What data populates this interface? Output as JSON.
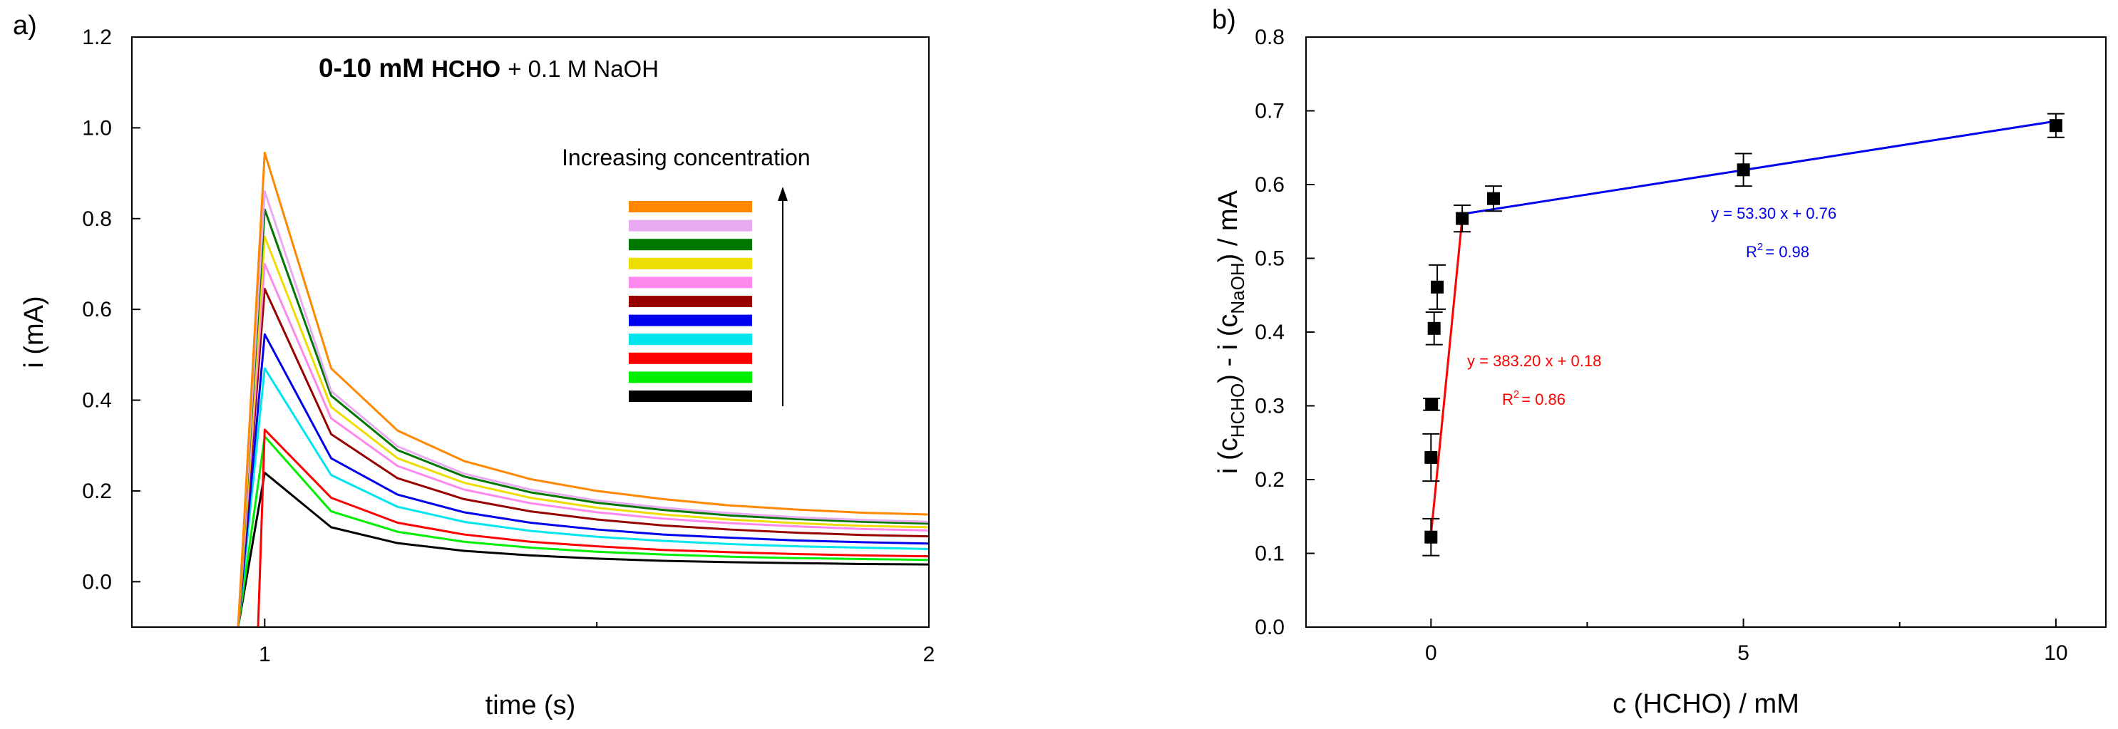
{
  "figure": {
    "panel_a_label": "a)",
    "panel_b_label": "b)"
  },
  "chart_data": [
    {
      "type": "line",
      "panel": "a)",
      "title_bold": "0-10 mM",
      "title_bold_compound": "HCHO",
      "title_rest": "+ 0.1 M NaOH",
      "xlabel": "time (s)",
      "ylabel": "i (mA)",
      "xlim": [
        0.8,
        2.0
      ],
      "ylim": [
        -0.1,
        1.2
      ],
      "xticks": [
        {
          "value": 1,
          "label": "1"
        },
        {
          "value": 2,
          "label": "2"
        }
      ],
      "yticks": [
        {
          "value": 0.0,
          "label": "0.0"
        },
        {
          "value": 0.2,
          "label": "0.2"
        },
        {
          "value": 0.4,
          "label": "0.4"
        },
        {
          "value": 0.6,
          "label": "0.6"
        },
        {
          "value": 0.8,
          "label": "0.8"
        },
        {
          "value": 1.0,
          "label": "1.0"
        },
        {
          "value": 1.2,
          "label": "1.2"
        }
      ],
      "legend_text": "Increasing concentration",
      "legend_placement": "right",
      "x": [
        1.0,
        1.1,
        1.2,
        1.3,
        1.4,
        1.5,
        1.6,
        1.7,
        1.8,
        1.9,
        2.0
      ],
      "series": [
        {
          "color": "#000000",
          "start_x": 0.96,
          "values": [
            0.24,
            0.12,
            0.085,
            0.068,
            0.058,
            0.051,
            0.046,
            0.043,
            0.041,
            0.039,
            0.038
          ]
        },
        {
          "color": "#00ee00",
          "start_x": 0.96,
          "values": [
            0.32,
            0.155,
            0.11,
            0.088,
            0.075,
            0.066,
            0.06,
            0.055,
            0.052,
            0.05,
            0.048
          ]
        },
        {
          "color": "#ff0000",
          "start_x": 0.99,
          "values": [
            0.335,
            0.185,
            0.13,
            0.104,
            0.088,
            0.078,
            0.07,
            0.065,
            0.061,
            0.058,
            0.056
          ]
        },
        {
          "color": "#00e5ee",
          "start_x": 0.96,
          "values": [
            0.47,
            0.235,
            0.165,
            0.132,
            0.112,
            0.099,
            0.09,
            0.083,
            0.078,
            0.075,
            0.072
          ]
        },
        {
          "color": "#0000ee",
          "start_x": 0.96,
          "values": [
            0.545,
            0.272,
            0.192,
            0.153,
            0.13,
            0.115,
            0.104,
            0.097,
            0.091,
            0.087,
            0.084
          ]
        },
        {
          "color": "#990000",
          "start_x": 0.96,
          "values": [
            0.645,
            0.325,
            0.228,
            0.182,
            0.155,
            0.137,
            0.124,
            0.115,
            0.108,
            0.103,
            0.1
          ]
        },
        {
          "color": "#ff88ee",
          "start_x": 0.96,
          "values": [
            0.7,
            0.36,
            0.255,
            0.203,
            0.173,
            0.153,
            0.139,
            0.129,
            0.122,
            0.116,
            0.113
          ]
        },
        {
          "color": "#eedd00",
          "start_x": 0.96,
          "values": [
            0.76,
            0.385,
            0.272,
            0.218,
            0.185,
            0.163,
            0.148,
            0.137,
            0.129,
            0.123,
            0.12
          ]
        },
        {
          "color": "#007700",
          "start_x": 0.96,
          "values": [
            0.82,
            0.41,
            0.29,
            0.232,
            0.197,
            0.174,
            0.158,
            0.146,
            0.138,
            0.132,
            0.128
          ]
        },
        {
          "color": "#e8aaf0",
          "start_x": 0.96,
          "values": [
            0.86,
            0.42,
            0.298,
            0.238,
            0.203,
            0.179,
            0.163,
            0.151,
            0.142,
            0.136,
            0.132
          ]
        },
        {
          "color": "#ff8800",
          "start_x": 0.96,
          "values": [
            0.945,
            0.47,
            0.333,
            0.266,
            0.226,
            0.2,
            0.182,
            0.168,
            0.159,
            0.152,
            0.148
          ]
        }
      ]
    },
    {
      "type": "scatter",
      "panel": "b)",
      "xlabel": "c (HCHO) / mM",
      "ylabel_parts": {
        "p1": "i (c",
        "s1": "HCHO",
        "p2": ") - i (c",
        "s2": "NaOH",
        "p3": ") / mA"
      },
      "xlim": [
        -2,
        10.8
      ],
      "ylim": [
        0.0,
        0.8
      ],
      "xticks": [
        {
          "value": 0,
          "label": "0"
        },
        {
          "value": 5,
          "label": "5"
        },
        {
          "value": 10,
          "label": "10"
        }
      ],
      "x_minor_ticks": [
        2.5,
        7.5
      ],
      "yticks": [
        {
          "value": 0.0,
          "label": "0.0"
        },
        {
          "value": 0.1,
          "label": "0.1"
        },
        {
          "value": 0.2,
          "label": "0.2"
        },
        {
          "value": 0.3,
          "label": "0.3"
        },
        {
          "value": 0.4,
          "label": "0.4"
        },
        {
          "value": 0.5,
          "label": "0.5"
        },
        {
          "value": 0.6,
          "label": "0.6"
        },
        {
          "value": 0.7,
          "label": "0.7"
        },
        {
          "value": 0.8,
          "label": "0.8"
        }
      ],
      "points": [
        {
          "x": 0.0,
          "y": 0.122,
          "err": 0.025
        },
        {
          "x": 0.0,
          "y": 0.23,
          "err": 0.032
        },
        {
          "x": 0.01,
          "y": 0.302,
          "err": 0.008
        },
        {
          "x": 0.05,
          "y": 0.405,
          "err": 0.022
        },
        {
          "x": 0.1,
          "y": 0.461,
          "err": 0.03
        },
        {
          "x": 0.5,
          "y": 0.554,
          "err": 0.018
        },
        {
          "x": 1.0,
          "y": 0.581,
          "err": 0.017
        },
        {
          "x": 5.0,
          "y": 0.62,
          "err": 0.022
        },
        {
          "x": 10.0,
          "y": 0.68,
          "err": 0.016
        }
      ],
      "fits": [
        {
          "name": "low",
          "color": "#ff0000",
          "slope": 383.2,
          "intercept": 0.18,
          "x_range": [
            0.0,
            0.5
          ],
          "equation": "y = 383.20 x + 0.18",
          "r2_prefix": "R",
          "r2_exp": "2",
          "r2_value": "= 0.86"
        },
        {
          "name": "high",
          "color": "#0000ee",
          "slope": 53.3,
          "intercept": 0.76,
          "x_range": [
            0.5,
            10.0
          ],
          "equation": "y = 53.30 x + 0.76",
          "r2_prefix": "R",
          "r2_exp": "2",
          "r2_value": "= 0.98"
        }
      ]
    }
  ]
}
